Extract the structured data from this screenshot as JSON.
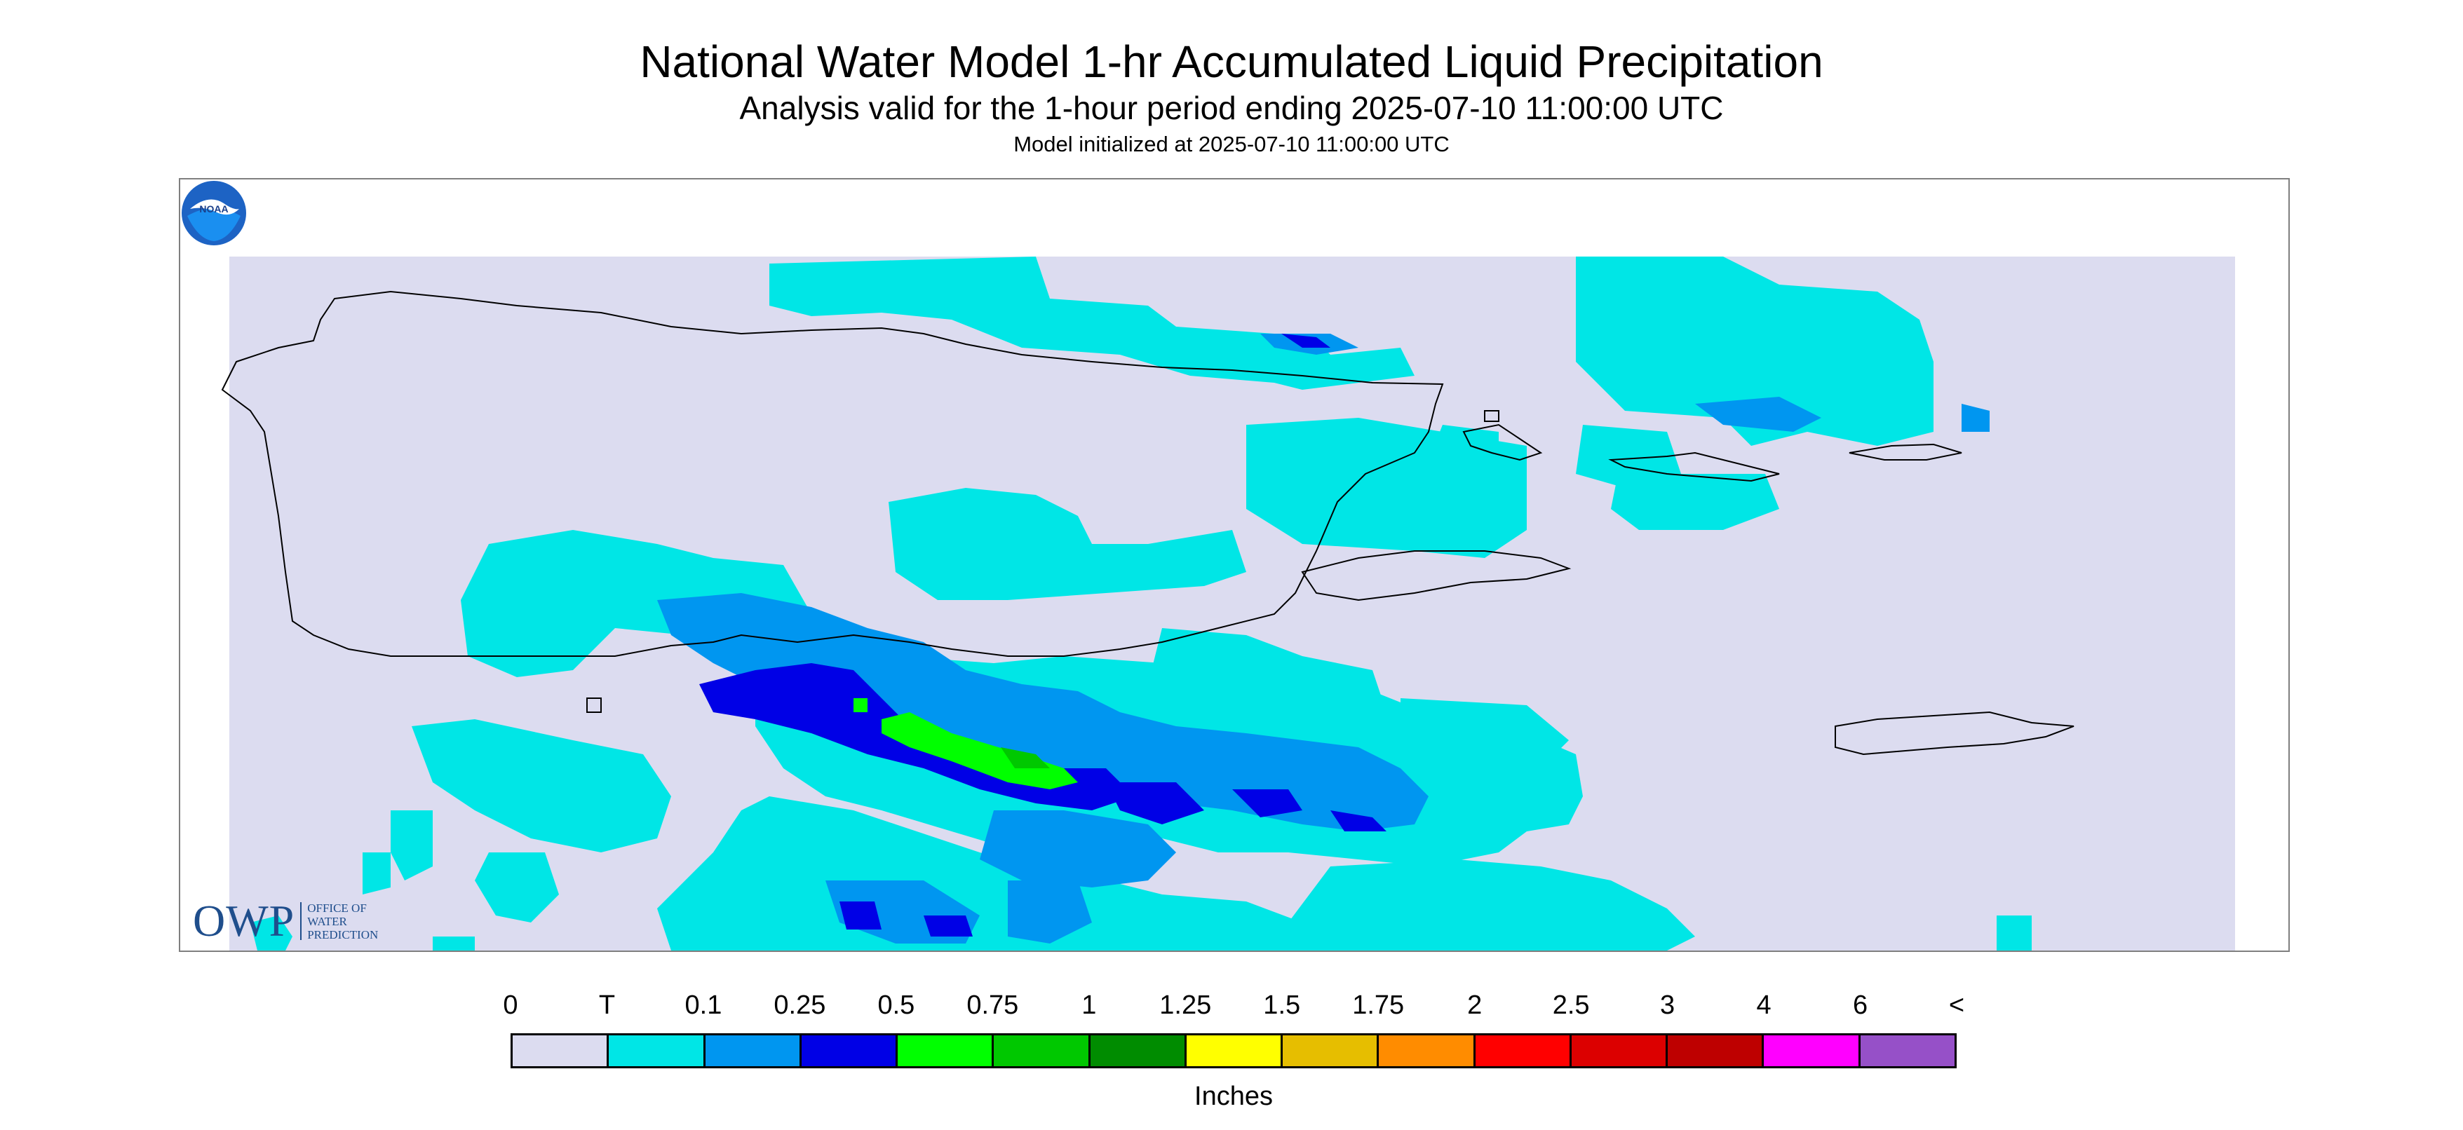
{
  "title": "National Water Model 1-hr Accumulated Liquid Precipitation",
  "subtitle": "Analysis valid for the 1-hour period ending 2025-07-10 11:00:00 UTC",
  "init_line": "Model initialized at 2025-07-10 11:00:00 UTC",
  "logos": {
    "owp_mark": "OWP",
    "owp_lines": [
      "OFFICE OF",
      "WATER",
      "PREDICTION"
    ],
    "noaa_text": "NOAA"
  },
  "legend": {
    "labels": [
      "0",
      "T",
      "0.1",
      "0.25",
      "0.5",
      "0.75",
      "1",
      "1.25",
      "1.5",
      "1.75",
      "2",
      "2.5",
      "3",
      "4",
      "6",
      "<"
    ],
    "colors": [
      "#dcdcf0",
      "#00e6e6",
      "#0096f0",
      "#0000e6",
      "#00ff00",
      "#00c800",
      "#008c00",
      "#ffff00",
      "#e6be00",
      "#ff8c00",
      "#ff0000",
      "#dc0000",
      "#be0000",
      "#ff00ff",
      "#9650c8"
    ],
    "units": "Inches"
  },
  "map_colors": {
    "background_no_precip": "#dcdcf0",
    "trace": "#00e6e6",
    "light": "#0096f0",
    "moderate": "#0000e6",
    "heavy": "#00ff00",
    "heavier": "#00c800",
    "coastline": "#000000"
  }
}
